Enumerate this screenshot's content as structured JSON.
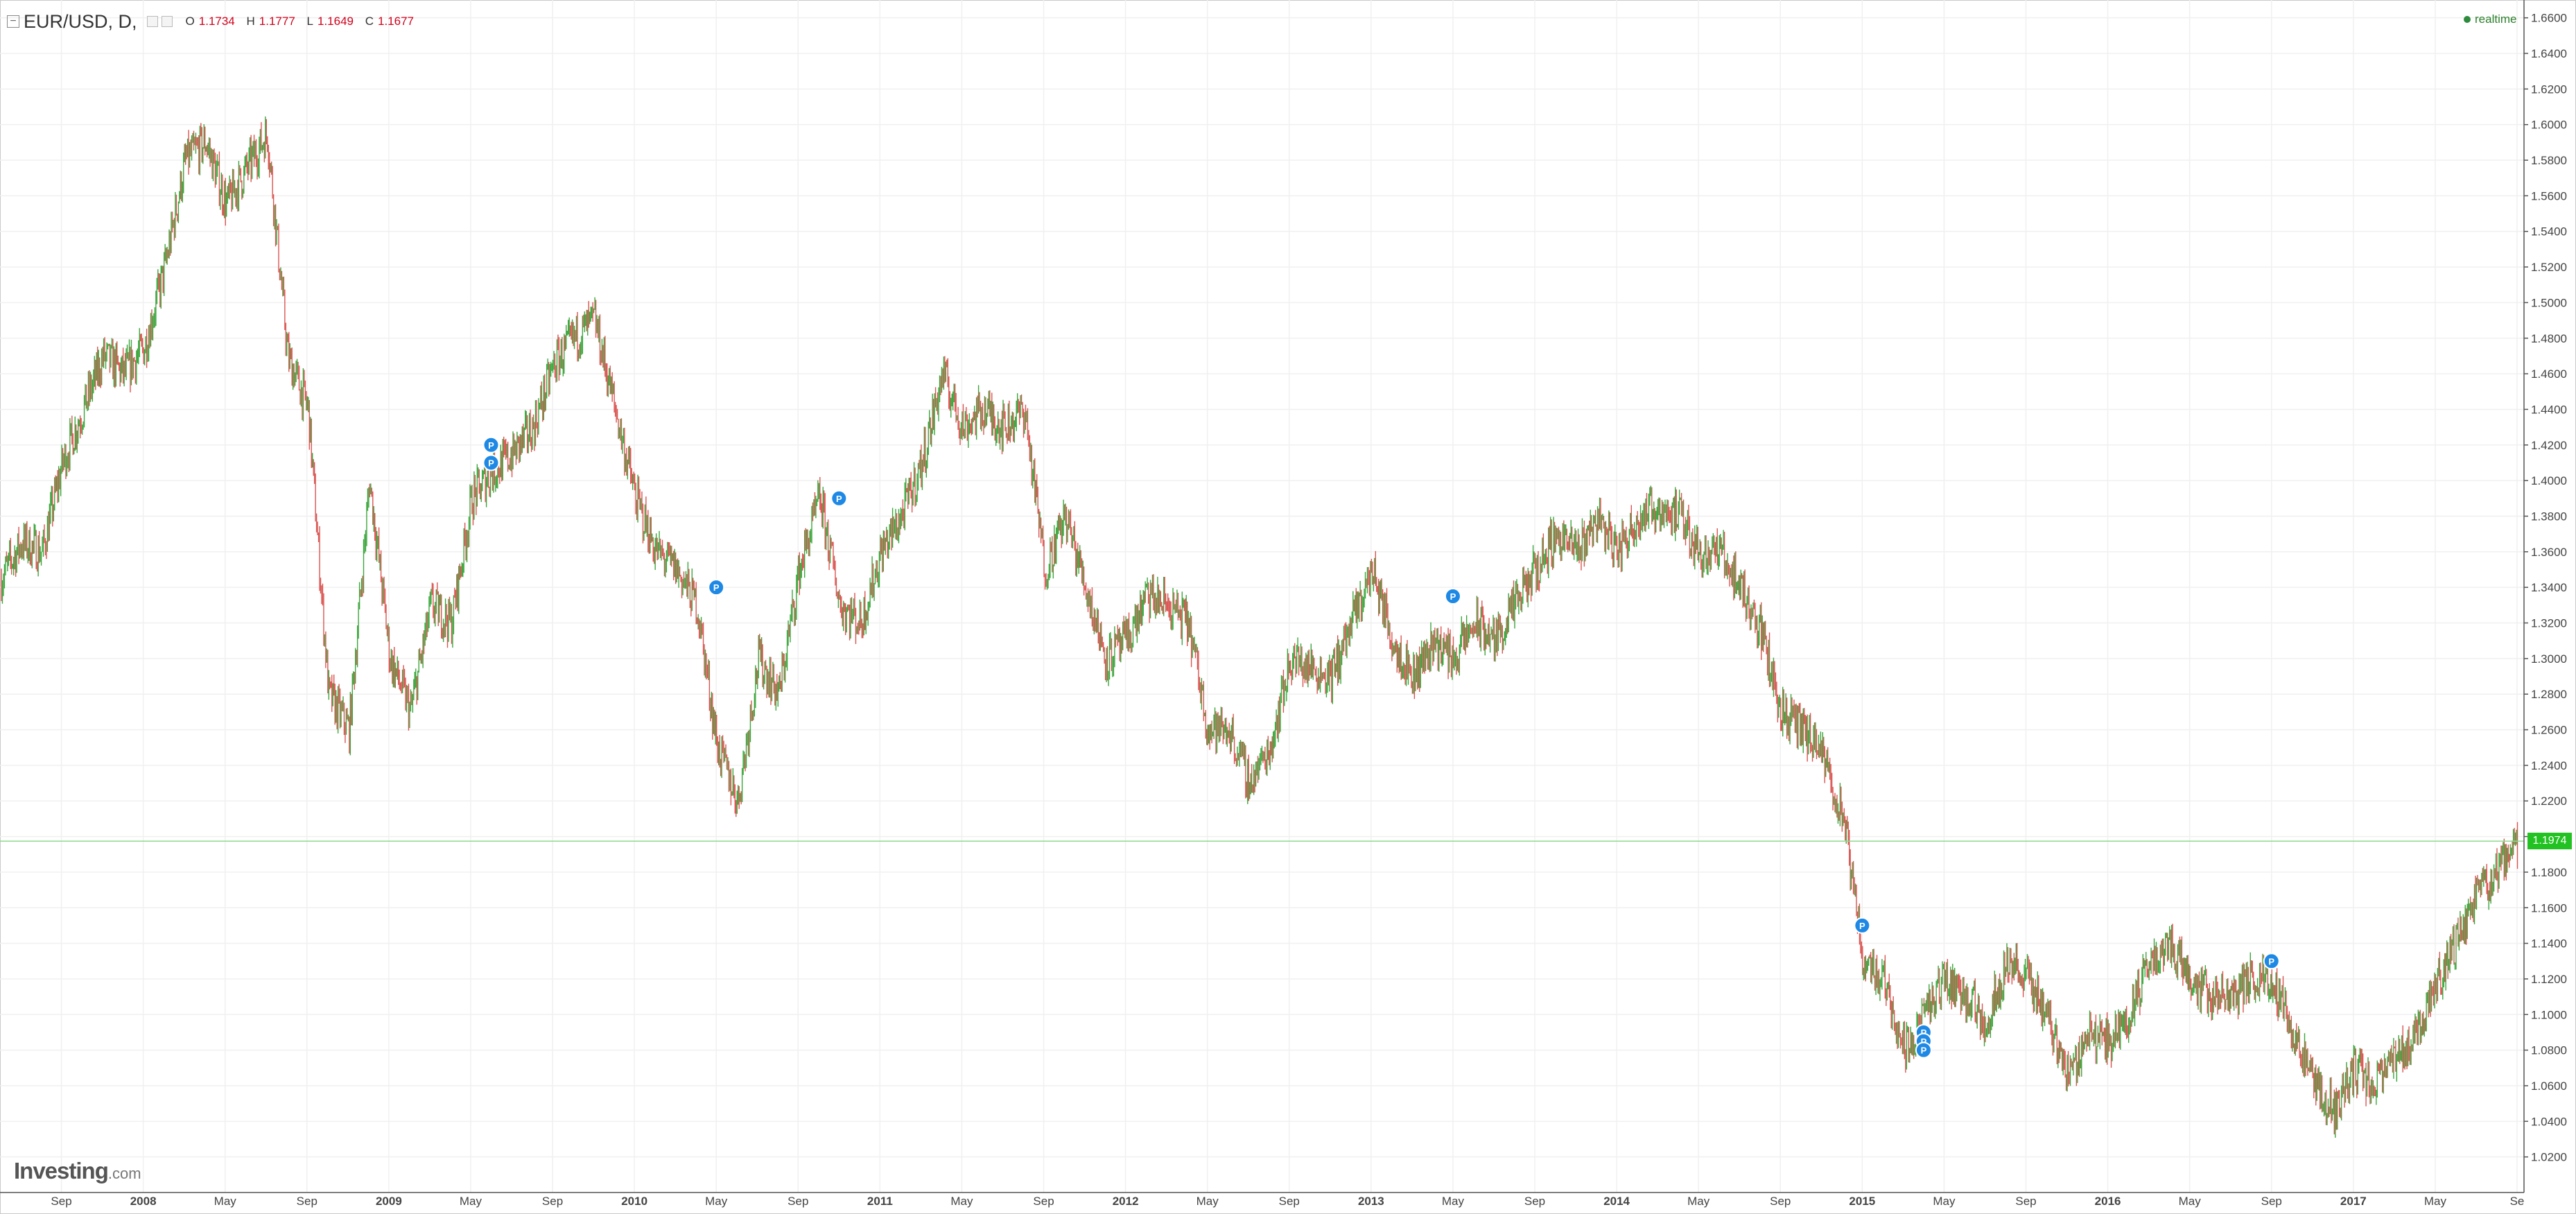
{
  "header": {
    "symbol": "EUR/USD, D,",
    "open_label": "O",
    "open_value": "1.1734",
    "high_label": "H",
    "high_value": "1.1777",
    "low_label": "L",
    "low_value": "1.1649",
    "close_label": "C",
    "close_value": "1.1677",
    "realtime_label": "realtime"
  },
  "logo": {
    "main": "Investing",
    "suffix": ".com"
  },
  "current_price": "1.1974",
  "colors": {
    "up": "#3aa53a",
    "down": "#d9534f",
    "grid": "#f0f0f0",
    "marker": "#1e88e5",
    "price_line": "#8fd88f",
    "price_tag": "#22c222"
  },
  "chart_data": {
    "type": "line",
    "style": "candlestick",
    "series": [
      {
        "name": "EUR/USD",
        "points": [
          {
            "x": "2007-06",
            "y": 1.345
          },
          {
            "x": "2007-07",
            "y": 1.365
          },
          {
            "x": "2007-08",
            "y": 1.36
          },
          {
            "x": "2007-09",
            "y": 1.41
          },
          {
            "x": "2007-10",
            "y": 1.44
          },
          {
            "x": "2007-11",
            "y": 1.47
          },
          {
            "x": "2007-12",
            "y": 1.46
          },
          {
            "x": "2008-01",
            "y": 1.475
          },
          {
            "x": "2008-02",
            "y": 1.52
          },
          {
            "x": "2008-03",
            "y": 1.58
          },
          {
            "x": "2008-04",
            "y": 1.59
          },
          {
            "x": "2008-05",
            "y": 1.555
          },
          {
            "x": "2008-06",
            "y": 1.575
          },
          {
            "x": "2008-07",
            "y": 1.595
          },
          {
            "x": "2008-08",
            "y": 1.47
          },
          {
            "x": "2008-09",
            "y": 1.44
          },
          {
            "x": "2008-10",
            "y": 1.28
          },
          {
            "x": "2008-11",
            "y": 1.26
          },
          {
            "x": "2008-12",
            "y": 1.4
          },
          {
            "x": "2009-01",
            "y": 1.3
          },
          {
            "x": "2009-02",
            "y": 1.27
          },
          {
            "x": "2009-03",
            "y": 1.33
          },
          {
            "x": "2009-04",
            "y": 1.32
          },
          {
            "x": "2009-05",
            "y": 1.39
          },
          {
            "x": "2009-06",
            "y": 1.405
          },
          {
            "x": "2009-07",
            "y": 1.415
          },
          {
            "x": "2009-08",
            "y": 1.43
          },
          {
            "x": "2009-09",
            "y": 1.465
          },
          {
            "x": "2009-10",
            "y": 1.48
          },
          {
            "x": "2009-11",
            "y": 1.49
          },
          {
            "x": "2009-12",
            "y": 1.44
          },
          {
            "x": "2010-01",
            "y": 1.39
          },
          {
            "x": "2010-02",
            "y": 1.36
          },
          {
            "x": "2010-03",
            "y": 1.35
          },
          {
            "x": "2010-04",
            "y": 1.33
          },
          {
            "x": "2010-05",
            "y": 1.25
          },
          {
            "x": "2010-06",
            "y": 1.22
          },
          {
            "x": "2010-07",
            "y": 1.3
          },
          {
            "x": "2010-08",
            "y": 1.28
          },
          {
            "x": "2010-09",
            "y": 1.35
          },
          {
            "x": "2010-10",
            "y": 1.39
          },
          {
            "x": "2010-11",
            "y": 1.33
          },
          {
            "x": "2010-12",
            "y": 1.32
          },
          {
            "x": "2011-01",
            "y": 1.36
          },
          {
            "x": "2011-02",
            "y": 1.38
          },
          {
            "x": "2011-03",
            "y": 1.41
          },
          {
            "x": "2011-04",
            "y": 1.46
          },
          {
            "x": "2011-05",
            "y": 1.43
          },
          {
            "x": "2011-06",
            "y": 1.44
          },
          {
            "x": "2011-07",
            "y": 1.43
          },
          {
            "x": "2011-08",
            "y": 1.44
          },
          {
            "x": "2011-09",
            "y": 1.35
          },
          {
            "x": "2011-10",
            "y": 1.38
          },
          {
            "x": "2011-11",
            "y": 1.34
          },
          {
            "x": "2011-12",
            "y": 1.3
          },
          {
            "x": "2012-01",
            "y": 1.31
          },
          {
            "x": "2012-02",
            "y": 1.335
          },
          {
            "x": "2012-03",
            "y": 1.33
          },
          {
            "x": "2012-04",
            "y": 1.32
          },
          {
            "x": "2012-05",
            "y": 1.26
          },
          {
            "x": "2012-06",
            "y": 1.26
          },
          {
            "x": "2012-07",
            "y": 1.23
          },
          {
            "x": "2012-08",
            "y": 1.25
          },
          {
            "x": "2012-09",
            "y": 1.3
          },
          {
            "x": "2012-10",
            "y": 1.295
          },
          {
            "x": "2012-11",
            "y": 1.29
          },
          {
            "x": "2012-12",
            "y": 1.32
          },
          {
            "x": "2013-01",
            "y": 1.35
          },
          {
            "x": "2013-02",
            "y": 1.31
          },
          {
            "x": "2013-03",
            "y": 1.29
          },
          {
            "x": "2013-04",
            "y": 1.31
          },
          {
            "x": "2013-05",
            "y": 1.3
          },
          {
            "x": "2013-06",
            "y": 1.32
          },
          {
            "x": "2013-07",
            "y": 1.31
          },
          {
            "x": "2013-08",
            "y": 1.33
          },
          {
            "x": "2013-09",
            "y": 1.35
          },
          {
            "x": "2013-10",
            "y": 1.37
          },
          {
            "x": "2013-11",
            "y": 1.36
          },
          {
            "x": "2013-12",
            "y": 1.38
          },
          {
            "x": "2014-01",
            "y": 1.36
          },
          {
            "x": "2014-02",
            "y": 1.38
          },
          {
            "x": "2014-03",
            "y": 1.385
          },
          {
            "x": "2014-04",
            "y": 1.38
          },
          {
            "x": "2014-05",
            "y": 1.36
          },
          {
            "x": "2014-06",
            "y": 1.36
          },
          {
            "x": "2014-07",
            "y": 1.34
          },
          {
            "x": "2014-08",
            "y": 1.315
          },
          {
            "x": "2014-09",
            "y": 1.27
          },
          {
            "x": "2014-10",
            "y": 1.26
          },
          {
            "x": "2014-11",
            "y": 1.245
          },
          {
            "x": "2014-12",
            "y": 1.21
          },
          {
            "x": "2015-01",
            "y": 1.13
          },
          {
            "x": "2015-02",
            "y": 1.12
          },
          {
            "x": "2015-03",
            "y": 1.08
          },
          {
            "x": "2015-04",
            "y": 1.1
          },
          {
            "x": "2015-05",
            "y": 1.12
          },
          {
            "x": "2015-06",
            "y": 1.11
          },
          {
            "x": "2015-07",
            "y": 1.095
          },
          {
            "x": "2015-08",
            "y": 1.13
          },
          {
            "x": "2015-09",
            "y": 1.12
          },
          {
            "x": "2015-10",
            "y": 1.1
          },
          {
            "x": "2015-11",
            "y": 1.065
          },
          {
            "x": "2015-12",
            "y": 1.09
          },
          {
            "x": "2016-01",
            "y": 1.085
          },
          {
            "x": "2016-02",
            "y": 1.1
          },
          {
            "x": "2016-03",
            "y": 1.13
          },
          {
            "x": "2016-04",
            "y": 1.14
          },
          {
            "x": "2016-05",
            "y": 1.12
          },
          {
            "x": "2016-06",
            "y": 1.11
          },
          {
            "x": "2016-07",
            "y": 1.11
          },
          {
            "x": "2016-08",
            "y": 1.12
          },
          {
            "x": "2016-09",
            "y": 1.12
          },
          {
            "x": "2016-10",
            "y": 1.09
          },
          {
            "x": "2016-11",
            "y": 1.06
          },
          {
            "x": "2016-12",
            "y": 1.045
          },
          {
            "x": "2017-01",
            "y": 1.07
          },
          {
            "x": "2017-02",
            "y": 1.06
          },
          {
            "x": "2017-03",
            "y": 1.075
          },
          {
            "x": "2017-04",
            "y": 1.09
          },
          {
            "x": "2017-05",
            "y": 1.12
          },
          {
            "x": "2017-06",
            "y": 1.14
          },
          {
            "x": "2017-07",
            "y": 1.17
          },
          {
            "x": "2017-08",
            "y": 1.18
          },
          {
            "x": "2017-09",
            "y": 1.1974
          }
        ]
      }
    ],
    "markers": [
      {
        "x": "2009-06",
        "y": 1.42,
        "label": "P"
      },
      {
        "x": "2009-06",
        "y": 1.41,
        "label": "P"
      },
      {
        "x": "2010-05",
        "y": 1.34,
        "label": "P"
      },
      {
        "x": "2010-11",
        "y": 1.39,
        "label": "P"
      },
      {
        "x": "2013-05",
        "y": 1.335,
        "label": "P"
      },
      {
        "x": "2015-01",
        "y": 1.15,
        "label": "P"
      },
      {
        "x": "2015-04",
        "y": 1.09,
        "label": "P"
      },
      {
        "x": "2015-04",
        "y": 1.085,
        "label": "P"
      },
      {
        "x": "2015-04",
        "y": 1.08,
        "label": "P"
      },
      {
        "x": "2016-09",
        "y": 1.13,
        "label": "P"
      }
    ],
    "x_ticks": [
      "Sep",
      "2008",
      "May",
      "Sep",
      "2009",
      "May",
      "Sep",
      "2010",
      "May",
      "Sep",
      "2011",
      "May",
      "Sep",
      "2012",
      "May",
      "Sep",
      "2013",
      "May",
      "Sep",
      "2014",
      "May",
      "Sep",
      "2015",
      "May",
      "Sep",
      "2016",
      "May",
      "Sep",
      "2017",
      "May",
      "Se"
    ],
    "y_ticks": [
      "1.6600",
      "1.6400",
      "1.6200",
      "1.6000",
      "1.5800",
      "1.5600",
      "1.5400",
      "1.5200",
      "1.5000",
      "1.4800",
      "1.4600",
      "1.4400",
      "1.4200",
      "1.4000",
      "1.3800",
      "1.3600",
      "1.3400",
      "1.3200",
      "1.3000",
      "1.2800",
      "1.2600",
      "1.2400",
      "1.2200",
      "1.2000",
      "1.1800",
      "1.1600",
      "1.1400",
      "1.1200",
      "1.1000",
      "1.0800",
      "1.0600",
      "1.0400",
      "1.0200"
    ],
    "ylim": [
      1.0,
      1.67
    ],
    "grid": true,
    "xlabel": "",
    "ylabel": ""
  }
}
